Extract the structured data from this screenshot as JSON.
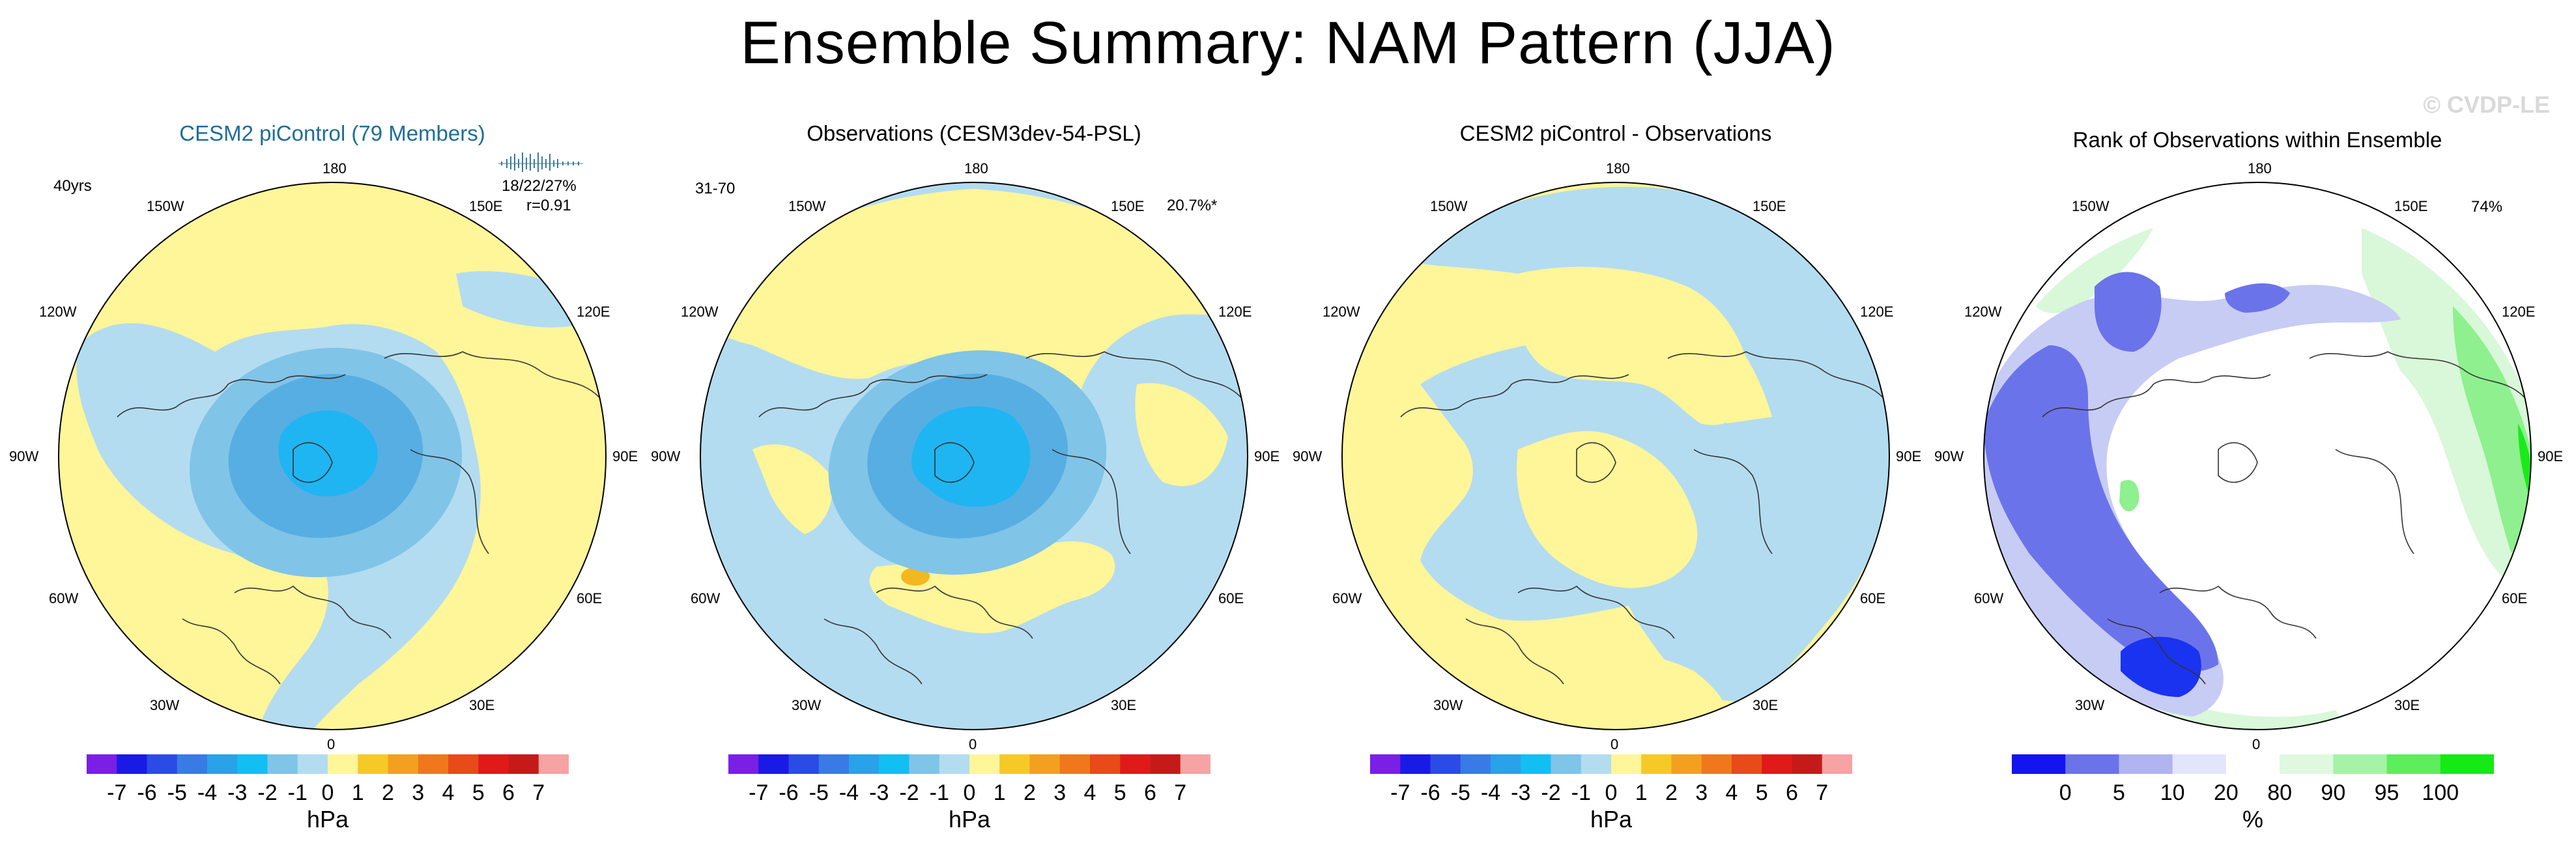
{
  "title": "Ensemble Summary: NAM Pattern (JJA)",
  "watermark": "© CVDP-LE",
  "colors": {
    "blue": "#b3dcf0",
    "yellow": "#fff599",
    "ring1": "#80c4e8",
    "ring2": "#57aee3",
    "ring3": "#1fb5f2",
    "orange": "#f2b81f",
    "line": "#000000",
    "rank_strong": "#1a33f0",
    "rank_mid": "#6b73ea",
    "rank_light": "#c7ccf5",
    "rank_green_light": "#d9f7d9",
    "rank_green_mid": "#8ef08e",
    "rank_green": "#1aea1a"
  },
  "chart_data": [
    {
      "type": "heatmap",
      "panel": "ensemble_mean",
      "title": "CESM2 piControl (79 Members)",
      "top_left": "40yrs",
      "stats": [
        "18/22/27%",
        "r=0.91"
      ],
      "lon_labels": [
        "180",
        "150W",
        "150E",
        "120W",
        "120E",
        "90W",
        "90E",
        "60W",
        "60E",
        "30W",
        "30E",
        "0"
      ],
      "colorbar": {
        "unit": "hPa",
        "levels": [
          "-7",
          "-6",
          "-5",
          "-4",
          "-3",
          "-2",
          "-1",
          "0",
          "1",
          "2",
          "3",
          "4",
          "5",
          "6",
          "7"
        ],
        "colors": [
          "#7a1fe6",
          "#1a1ae6",
          "#2b4be6",
          "#3a7ae6",
          "#28a2e8",
          "#12bff2",
          "#80c4e8",
          "#b3dcf0",
          "#fff599",
          "#f5c926",
          "#f3a01f",
          "#f0781a",
          "#e84a1a",
          "#e01a1a",
          "#c61a1a",
          "#f5a3a3"
        ]
      }
    },
    {
      "type": "heatmap",
      "panel": "observations",
      "title": "Observations (CESM3dev-54-PSL)",
      "top_left": "31-70",
      "top_right": "20.7%*",
      "lon_labels": [
        "180",
        "150W",
        "150E",
        "120W",
        "120E",
        "90W",
        "90E",
        "60W",
        "60E",
        "30W",
        "30E",
        "0"
      ],
      "colorbar": {
        "unit": "hPa",
        "levels": [
          "-7",
          "-6",
          "-5",
          "-4",
          "-3",
          "-2",
          "-1",
          "0",
          "1",
          "2",
          "3",
          "4",
          "5",
          "6",
          "7"
        ],
        "colors": [
          "#7a1fe6",
          "#1a1ae6",
          "#2b4be6",
          "#3a7ae6",
          "#28a2e8",
          "#12bff2",
          "#80c4e8",
          "#b3dcf0",
          "#fff599",
          "#f5c926",
          "#f3a01f",
          "#f0781a",
          "#e84a1a",
          "#e01a1a",
          "#c61a1a",
          "#f5a3a3"
        ]
      }
    },
    {
      "type": "heatmap",
      "panel": "difference",
      "title": "CESM2 piControl - Observations",
      "lon_labels": [
        "180",
        "150W",
        "150E",
        "120W",
        "120E",
        "90W",
        "90E",
        "60W",
        "60E",
        "30W",
        "30E",
        "0"
      ],
      "colorbar": {
        "unit": "hPa",
        "levels": [
          "-7",
          "-6",
          "-5",
          "-4",
          "-3",
          "-2",
          "-1",
          "0",
          "1",
          "2",
          "3",
          "4",
          "5",
          "6",
          "7"
        ],
        "colors": [
          "#7a1fe6",
          "#1a1ae6",
          "#2b4be6",
          "#3a7ae6",
          "#28a2e8",
          "#12bff2",
          "#80c4e8",
          "#b3dcf0",
          "#fff599",
          "#f5c926",
          "#f3a01f",
          "#f0781a",
          "#e84a1a",
          "#e01a1a",
          "#c61a1a",
          "#f5a3a3"
        ]
      }
    },
    {
      "type": "heatmap",
      "panel": "rank",
      "title": "Rank of Observations within Ensemble",
      "top_right": "74%",
      "lon_labels": [
        "180",
        "150W",
        "150E",
        "120W",
        "120E",
        "90W",
        "90E",
        "60W",
        "60E",
        "30W",
        "30E",
        "0"
      ],
      "colorbar": {
        "unit": "%",
        "levels": [
          "0",
          "5",
          "10",
          "20",
          "80",
          "90",
          "95",
          "100"
        ],
        "colors": [
          "#1414f0",
          "#6b73ea",
          "#b0b5f0",
          "#e3e5fa",
          "#ffffff",
          "#dff8df",
          "#a6f2a6",
          "#5cee5c",
          "#14ea14"
        ]
      }
    }
  ]
}
